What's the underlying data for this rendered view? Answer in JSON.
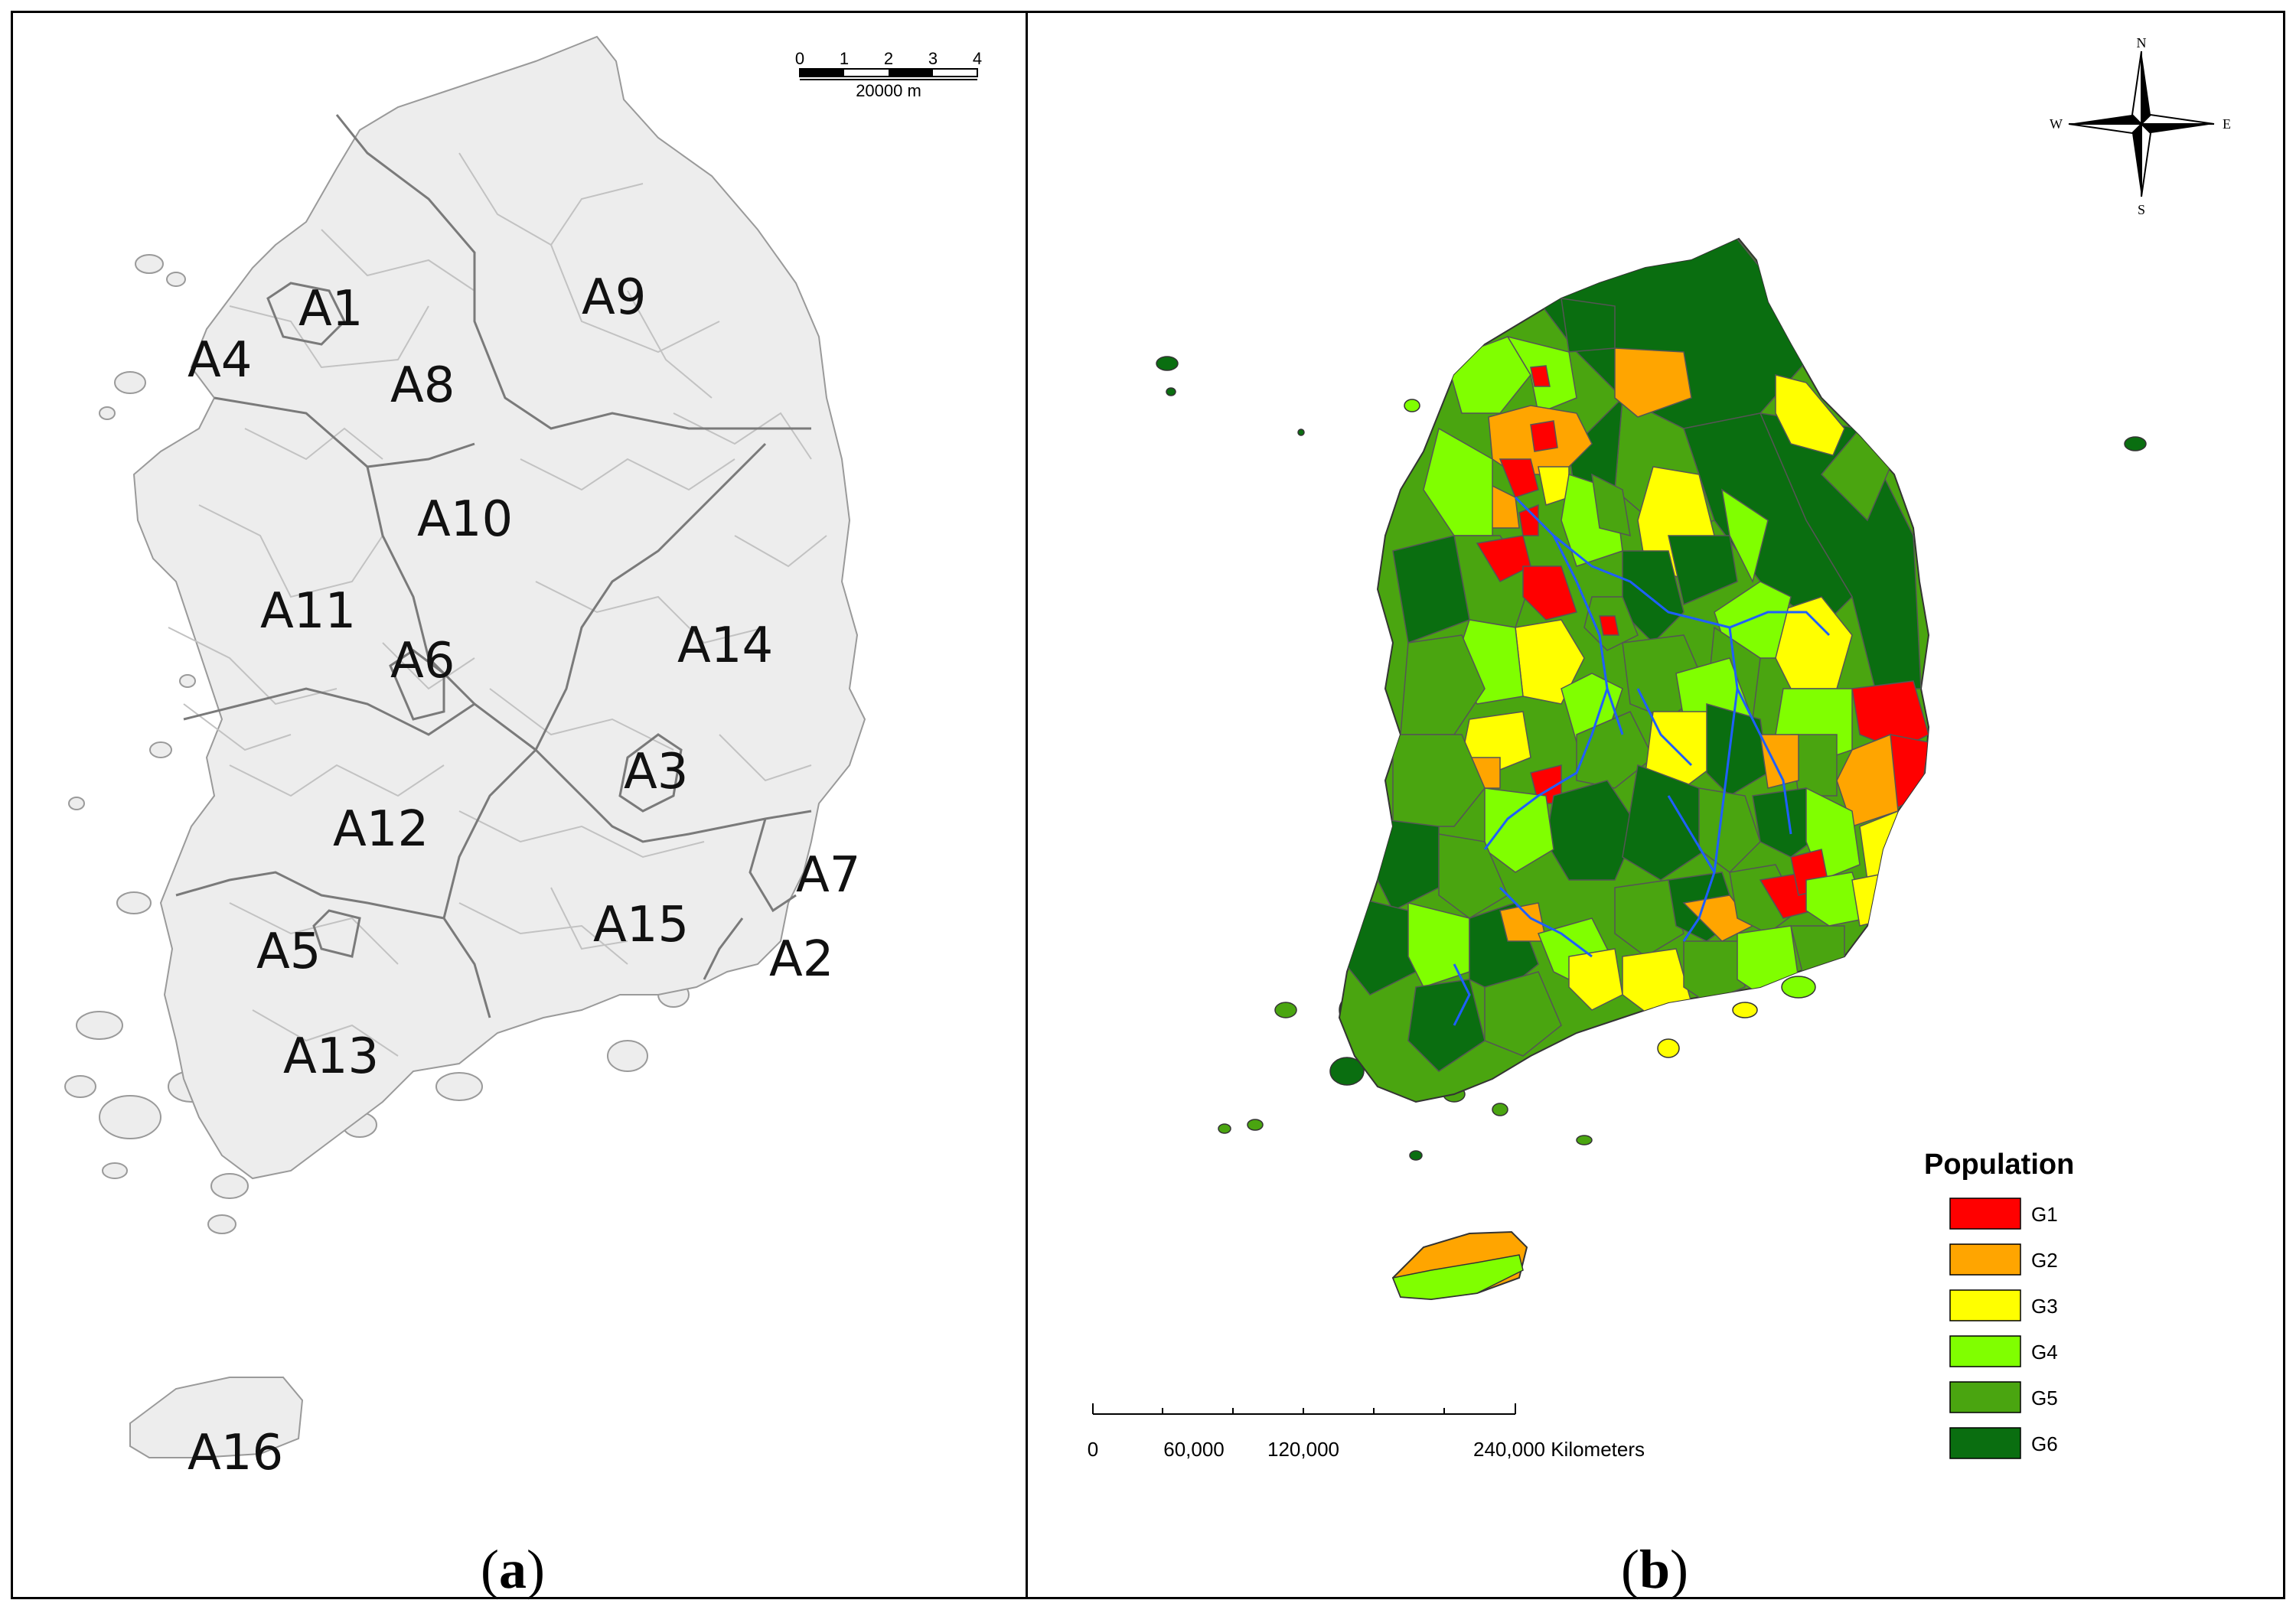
{
  "panel_a": {
    "caption_open": "(",
    "caption_letter": "a",
    "caption_close": ")",
    "scale_ticks": [
      "0",
      "1",
      "2",
      "3",
      "4"
    ],
    "scale_unit": "20000 m",
    "regions": [
      {
        "id": "A1",
        "label": "A1"
      },
      {
        "id": "A2",
        "label": "A2"
      },
      {
        "id": "A3",
        "label": "A3"
      },
      {
        "id": "A4",
        "label": "A4"
      },
      {
        "id": "A5",
        "label": "A5"
      },
      {
        "id": "A6",
        "label": "A6"
      },
      {
        "id": "A7",
        "label": "A7"
      },
      {
        "id": "A8",
        "label": "A8"
      },
      {
        "id": "A9",
        "label": "A9"
      },
      {
        "id": "A10",
        "label": "A10"
      },
      {
        "id": "A11",
        "label": "A11"
      },
      {
        "id": "A12",
        "label": "A12"
      },
      {
        "id": "A13",
        "label": "A13"
      },
      {
        "id": "A14",
        "label": "A14"
      },
      {
        "id": "A15",
        "label": "A15"
      },
      {
        "id": "A16",
        "label": "A16"
      }
    ],
    "colors": {
      "land": "#ededed",
      "boundary": "#7a7a7a",
      "minor_boundary": "#bdbdbd"
    }
  },
  "panel_b": {
    "caption_open": "(",
    "caption_letter": "b",
    "caption_close": ")",
    "compass": {
      "n": "N",
      "s": "S",
      "e": "E",
      "w": "W"
    },
    "scale_ticks": [
      "0",
      "60,000",
      "120,000",
      "240,000 Kilometers"
    ],
    "legend": {
      "title": "Population",
      "items": [
        {
          "label": "G1",
          "color": "#ff0000"
        },
        {
          "label": "G2",
          "color": "#ffa500"
        },
        {
          "label": "G3",
          "color": "#ffff00"
        },
        {
          "label": "G4",
          "color": "#80ff00"
        },
        {
          "label": "G5",
          "color": "#4aa510"
        },
        {
          "label": "G6",
          "color": "#0a6e10"
        }
      ]
    },
    "river_color": "#1f5fff"
  }
}
